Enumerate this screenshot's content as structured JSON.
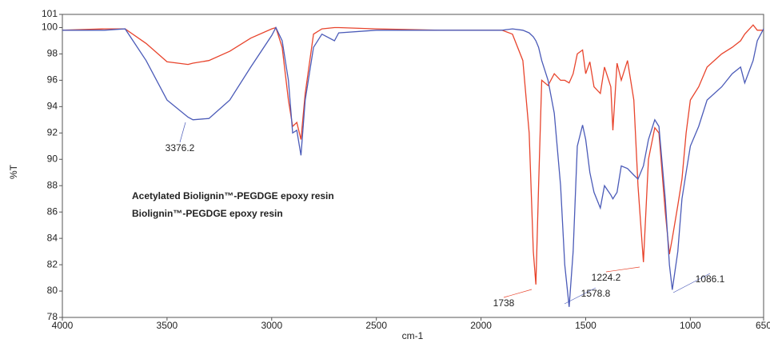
{
  "chart_data": {
    "type": "line",
    "x_label": "cm-1",
    "y_label": "%T",
    "x": [
      4000,
      3800,
      3700,
      3600,
      3500,
      3400,
      3376.2,
      3300,
      3200,
      3100,
      3000,
      2980,
      2950,
      2920,
      2900,
      2880,
      2860,
      2840,
      2800,
      2760,
      2700,
      2680,
      2500,
      2200,
      2000,
      1900,
      1850,
      1800,
      1770,
      1750,
      1738,
      1725,
      1710,
      1680,
      1650,
      1620,
      1600,
      1578.8,
      1560,
      1540,
      1515,
      1500,
      1480,
      1460,
      1430,
      1410,
      1380,
      1370,
      1350,
      1330,
      1300,
      1270,
      1250,
      1224.2,
      1200,
      1170,
      1150,
      1120,
      1100,
      1086.1,
      1060,
      1040,
      1020,
      1000,
      960,
      920,
      850,
      800,
      760,
      740,
      700,
      680,
      650
    ],
    "series": [
      {
        "name": "Acetylated Biolignin™-PEGDGE epoxy resin",
        "color": "#e8442c",
        "values": [
          99.8,
          99.9,
          99.9,
          98.8,
          97.4,
          97.2,
          97.3,
          97.5,
          98.2,
          99.2,
          99.9,
          100.0,
          98.5,
          94.5,
          92.5,
          92.8,
          91.5,
          95.0,
          99.5,
          99.9,
          100.0,
          100.0,
          99.9,
          99.8,
          99.8,
          99.8,
          99.5,
          97.5,
          92,
          83,
          80.5,
          88,
          96,
          95.6,
          96.5,
          96.0,
          96.0,
          95.8,
          96.5,
          98.0,
          98.3,
          96.5,
          97.4,
          95.5,
          95.0,
          97.0,
          95.5,
          92.2,
          97.3,
          96.0,
          97.5,
          94.5,
          88.0,
          82.2,
          90.0,
          92.4,
          92.0,
          86.0,
          82.8,
          84.0,
          86.5,
          88.5,
          92.0,
          94.5,
          95.5,
          97.0,
          98.0,
          98.5,
          99.0,
          99.5,
          100.2,
          99.8,
          99.8
        ]
      },
      {
        "name": "Biolignin™-PEGDGE epoxy resin",
        "color": "#4b5bb8",
        "values": [
          99.8,
          99.8,
          99.9,
          97.5,
          94.5,
          93.2,
          93.0,
          93.1,
          94.5,
          97.0,
          99.4,
          100.0,
          99.0,
          96.0,
          92.0,
          92.2,
          90.3,
          94.5,
          98.5,
          99.5,
          99.0,
          99.6,
          99.8,
          99.8,
          99.8,
          99.8,
          99.9,
          99.8,
          99.6,
          99.3,
          99.0,
          98.5,
          97.5,
          96.0,
          93.5,
          88.0,
          82.0,
          78.8,
          83.0,
          91.0,
          92.6,
          91.5,
          89.0,
          87.5,
          86.3,
          88.0,
          87.3,
          87.0,
          87.5,
          89.5,
          89.3,
          88.8,
          88.5,
          89.5,
          91.5,
          93.0,
          92.5,
          87.0,
          82.0,
          80.1,
          83.0,
          87.0,
          89.0,
          91.0,
          92.5,
          94.5,
          95.5,
          96.5,
          97.0,
          95.8,
          97.5,
          99.0,
          99.9
        ]
      }
    ],
    "annotations": [
      {
        "text": "3376.2",
        "color": "#4b5bb8"
      },
      {
        "text": "1738",
        "color": "#e8442c"
      },
      {
        "text": "1578.8",
        "color": "#4b5bb8"
      },
      {
        "text": "1224.2",
        "color": "#e8442c"
      },
      {
        "text": "1086.1",
        "color": "#4b5bb8"
      }
    ],
    "xlim": [
      4000,
      650
    ],
    "xticks": [
      4000,
      3500,
      3000,
      2500,
      2000,
      1500,
      1000,
      650
    ],
    "ylim": [
      78,
      101
    ],
    "yticks": [
      78,
      80,
      82,
      84,
      86,
      88,
      90,
      92,
      94,
      96,
      98,
      100,
      101
    ],
    "grid": false
  }
}
